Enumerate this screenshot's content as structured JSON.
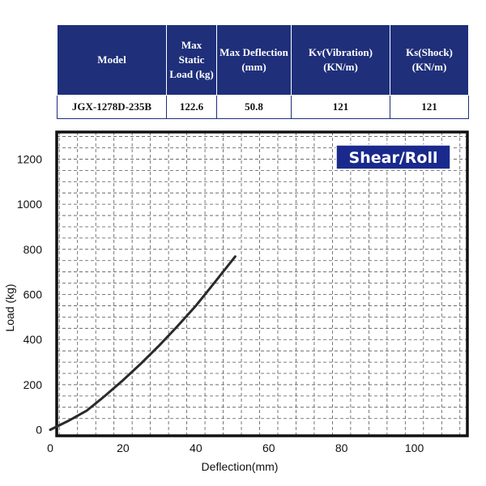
{
  "spec_table": {
    "headers": [
      "Model",
      "Max Static Load (kg)",
      "Max Deflection (mm)",
      "Kv(Vibration) (KN/m)",
      "Ks(Shock) (KN/m)"
    ],
    "row": [
      "JGX-1278D-235B",
      "122.6",
      "50.8",
      "121",
      "121"
    ]
  },
  "chart_data": {
    "type": "line",
    "title": "",
    "badge": "Shear/Roll",
    "xlabel": "Deflection(mm)",
    "ylabel": "Load (kg)",
    "xlim": [
      0,
      115
    ],
    "ylim": [
      -30,
      1320
    ],
    "x_ticks": [
      "0",
      "20",
      "40",
      "60",
      "80",
      "100"
    ],
    "y_ticks": [
      "0",
      "200",
      "400",
      "600",
      "800",
      "1000",
      "1200"
    ],
    "grid": true,
    "series": [
      {
        "x": [
          0,
          5,
          10,
          15,
          20,
          25,
          30,
          35,
          40,
          45,
          50.8
        ],
        "y": [
          0,
          40,
          85,
          150,
          220,
          295,
          375,
          460,
          550,
          650,
          768
        ]
      }
    ]
  },
  "colors": {
    "header_bg": "#1f2f7a",
    "badge_bg": "#1a2a8c",
    "curve": "#2a2a2a",
    "grid": "#555555"
  }
}
